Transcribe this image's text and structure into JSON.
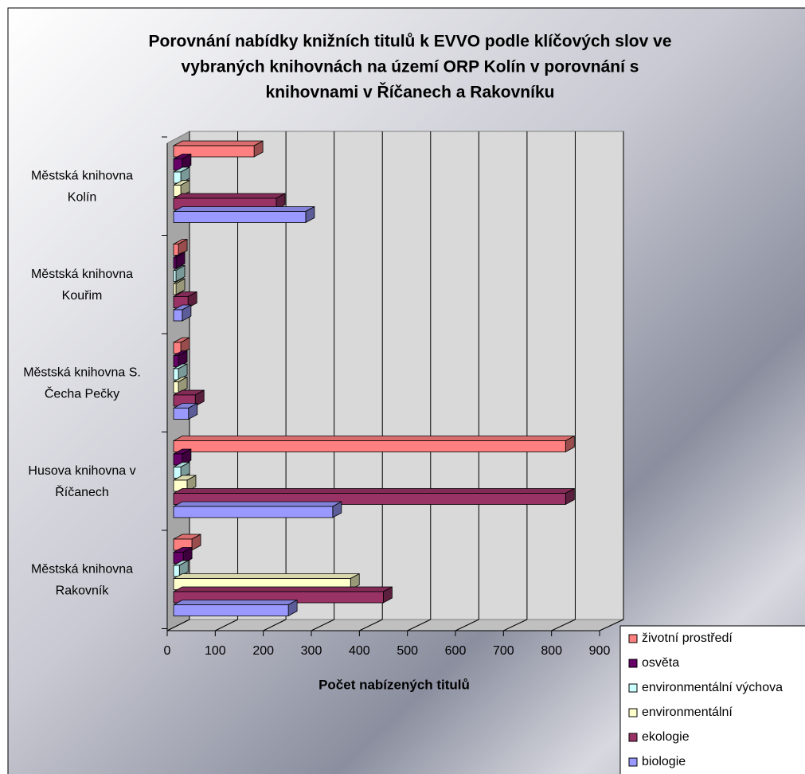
{
  "chart_data": {
    "type": "bar3d_horizontal",
    "title": [
      "Porovnání nabídky knižních titulů k EVVO podle klíčových slov ve",
      "vybraných knihovnách na území ORP Kolín v porovnání s",
      "knihovnami v Říčanech a Rakovníku"
    ],
    "x_label": "Počet nabízených titulů",
    "categories": [
      [
        "Městská knihovna",
        "Kolín"
      ],
      [
        "Městská knihovna",
        "Kouřim"
      ],
      [
        "Městská knihovna S.",
        "Čecha Pečky"
      ],
      [
        "Husova knihovna v",
        "Říčanech"
      ],
      [
        "Městská knihovna",
        "Rakovník"
      ]
    ],
    "series": [
      {
        "name": "životní prostředí",
        "color": "#ff8080",
        "values": [
          167,
          10,
          15,
          813,
          38
        ]
      },
      {
        "name": "osvěta",
        "color": "#660066",
        "values": [
          18,
          5,
          10,
          18,
          20
        ]
      },
      {
        "name": "environmentální výchova",
        "color": "#ccffff",
        "values": [
          15,
          5,
          10,
          15,
          12
        ]
      },
      {
        "name": "environmentální",
        "color": "#ffffcc",
        "values": [
          15,
          5,
          10,
          28,
          367
        ]
      },
      {
        "name": "ekologie",
        "color": "#993366",
        "values": [
          213,
          30,
          45,
          813,
          435
        ]
      },
      {
        "name": "biologie",
        "color": "#9999ff",
        "values": [
          274,
          18,
          31,
          330,
          238
        ]
      }
    ],
    "xlim": [
      0,
      900
    ],
    "xticks": [
      0,
      100,
      200,
      300,
      400,
      500,
      600,
      700,
      800,
      900
    ],
    "grid": true
  }
}
